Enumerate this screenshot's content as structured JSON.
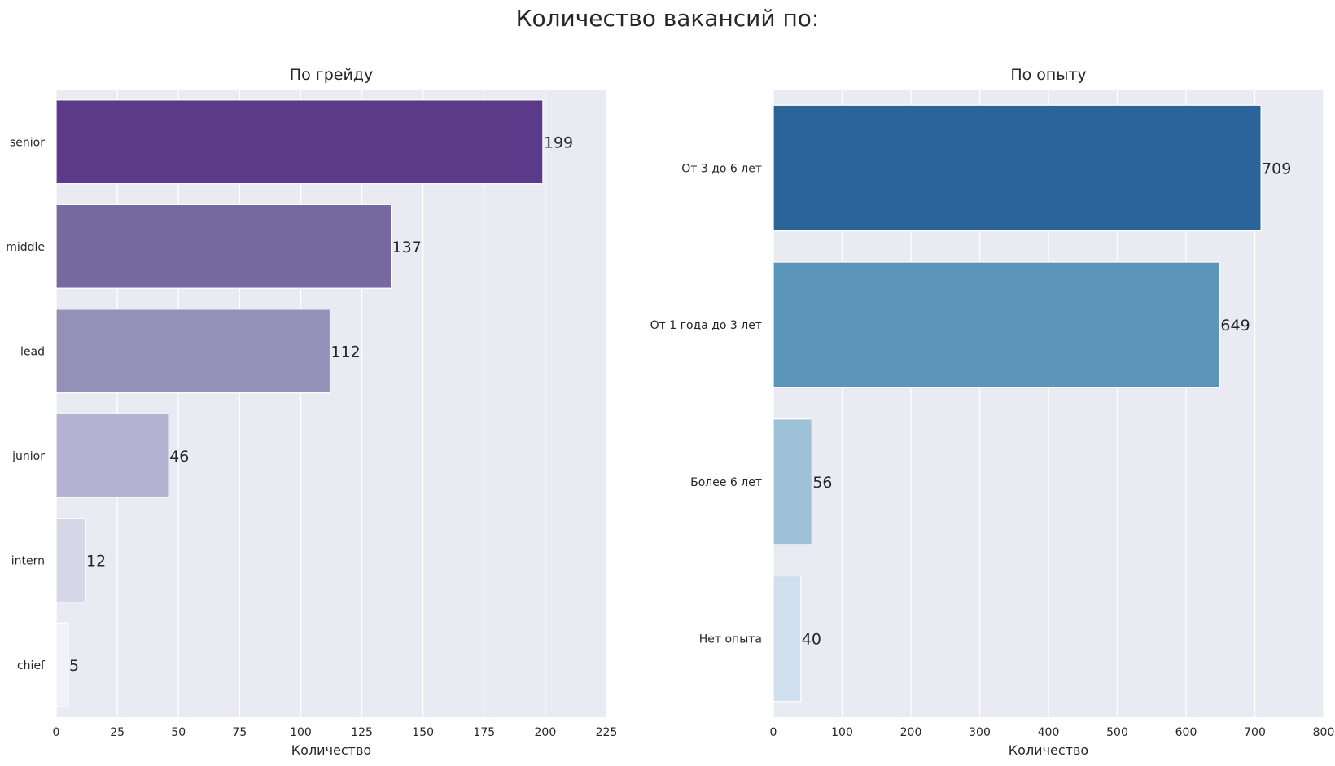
{
  "figure": {
    "suptitle": "Количество вакансий по:"
  },
  "colors": {
    "panel_bg": "#EAEAF2",
    "grid": "#FFFFFF",
    "text": "#262626",
    "grade_palette": [
      "#5A3A89",
      "#76699F",
      "#9491B9",
      "#B3B2D1",
      "#D7D6E7",
      "#F2F1F7"
    ],
    "experience_palette": [
      "#2A6499",
      "#5C95BA",
      "#9DC1D6",
      "#CFDFEE"
    ]
  },
  "chart_data": [
    {
      "type": "bar",
      "orientation": "horizontal",
      "title": "По грейду",
      "xlabel": "Количество",
      "ylabel": "",
      "categories": [
        "senior",
        "middle",
        "lead",
        "junior",
        "intern",
        "chief"
      ],
      "values": [
        199,
        137,
        112,
        46,
        12,
        5
      ],
      "xlim": [
        0,
        225
      ],
      "xticks": [
        0,
        25,
        50,
        75,
        100,
        125,
        150,
        175,
        200,
        225
      ],
      "grid": true,
      "data_labels": true
    },
    {
      "type": "bar",
      "orientation": "horizontal",
      "title": "По опыту",
      "xlabel": "Количество",
      "ylabel": "",
      "categories": [
        "От 3 до 6 лет",
        "От 1 года до 3 лет",
        "Более 6 лет",
        "Нет опыта"
      ],
      "values": [
        709,
        649,
        56,
        40
      ],
      "xlim": [
        0,
        800
      ],
      "xticks": [
        0,
        100,
        200,
        300,
        400,
        500,
        600,
        700,
        800
      ],
      "grid": true,
      "data_labels": true
    }
  ]
}
